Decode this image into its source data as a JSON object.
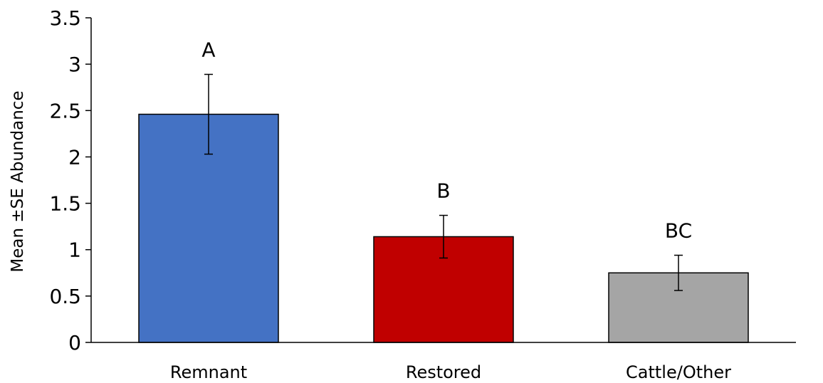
{
  "chart_data": {
    "type": "bar",
    "title": "",
    "xlabel": "",
    "ylabel": "Mean ±SE Abundance",
    "ylim": [
      0,
      3.5
    ],
    "yticks": [
      "0",
      "0.5",
      "1",
      "1.5",
      "2",
      "2.5",
      "3",
      "3.5"
    ],
    "categories": [
      "Remnant",
      "Restored",
      "Cattle/Other"
    ],
    "values": [
      2.46,
      1.14,
      0.75
    ],
    "errors": [
      0.43,
      0.23,
      0.19
    ],
    "significance_labels": [
      "A",
      "B",
      "BC"
    ],
    "colors": [
      "#4472C4",
      "#C00000",
      "#A5A5A5"
    ],
    "grid": false,
    "legend": "none"
  }
}
